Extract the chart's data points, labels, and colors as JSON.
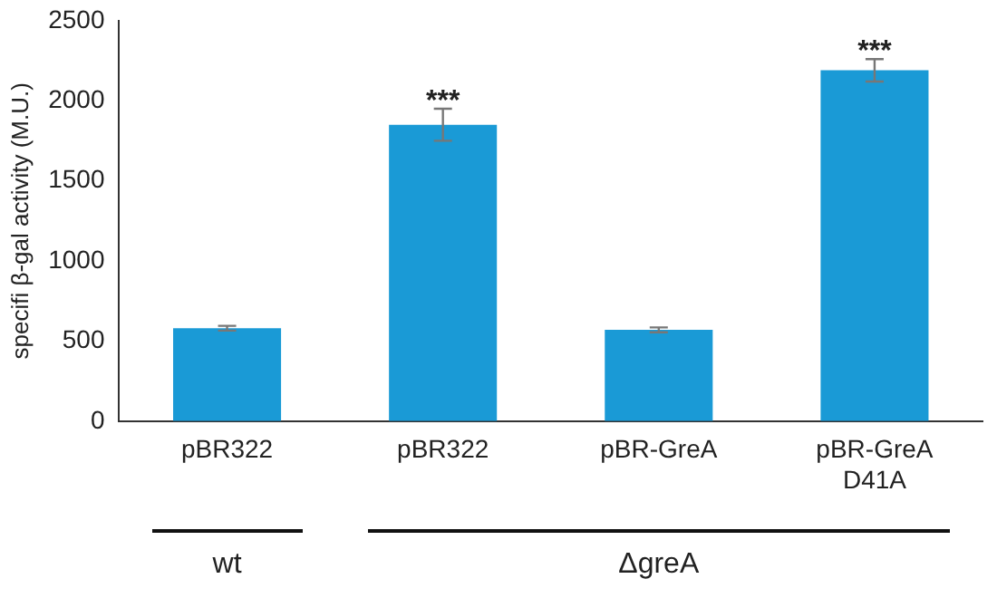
{
  "chart_data": {
    "type": "bar",
    "ylabel": "specifi β-gal activity (M.U.)",
    "categories": [
      "pBR322",
      "pBR322",
      "pBR-GreA",
      "pBR-GreA D41A"
    ],
    "values": [
      580,
      1850,
      570,
      2190
    ],
    "errors": [
      15,
      100,
      15,
      70
    ],
    "color": "#1a9ad6",
    "ylim": [
      0,
      2500
    ],
    "yticks": [
      0,
      500,
      1000,
      1500,
      2000,
      2500
    ],
    "grid": false,
    "legend": false,
    "annotations": [
      "***",
      "***",
      "wt",
      "ΔgreA"
    ]
  }
}
